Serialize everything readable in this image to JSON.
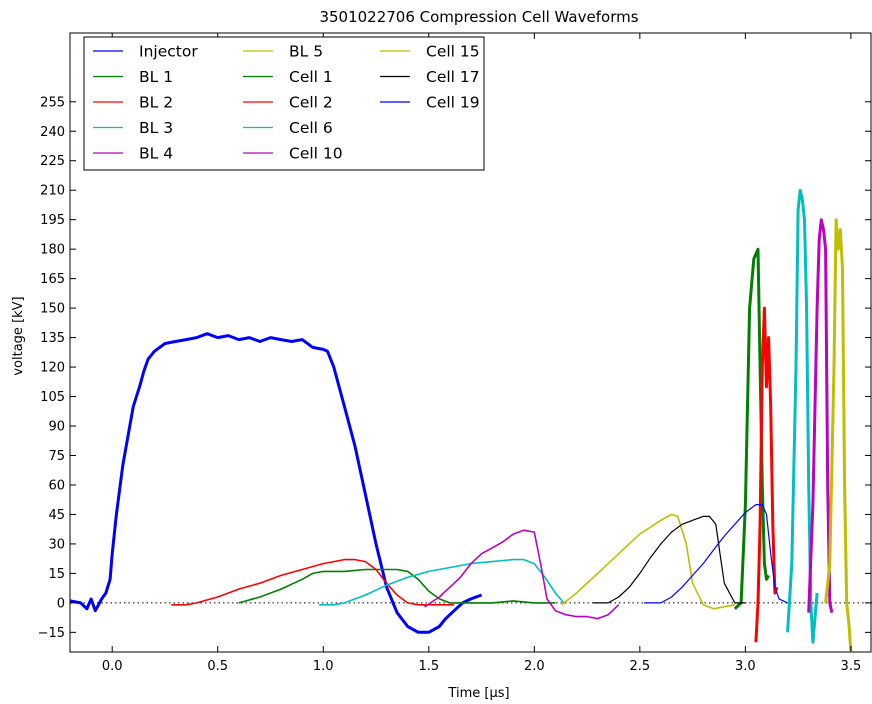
{
  "chart_data": {
    "type": "line",
    "title": "3501022706 Compression Cell Waveforms",
    "xlabel": "Time [μs]",
    "ylabel": "voltage [kV]",
    "xlim": [
      -0.2,
      3.6
    ],
    "ylim": [
      -25,
      290
    ],
    "xticks": [
      0.0,
      0.5,
      1.0,
      1.5,
      2.0,
      2.5,
      3.0,
      3.5
    ],
    "xtick_labels": [
      "0.0",
      "0.5",
      "1.0",
      "1.5",
      "2.0",
      "2.5",
      "3.0",
      "3.5"
    ],
    "yticks": [
      -15,
      0,
      15,
      30,
      45,
      60,
      75,
      90,
      105,
      120,
      135,
      150,
      165,
      180,
      195,
      210,
      225,
      240,
      255
    ],
    "ytick_labels": [
      "−15",
      "0",
      "15",
      "30",
      "45",
      "60",
      "75",
      "90",
      "105",
      "120",
      "135",
      "150",
      "165",
      "180",
      "195",
      "210",
      "225",
      "240",
      "255"
    ],
    "grid": false,
    "zero_line": "dotted",
    "legend_location": "upper-left",
    "legend_columns": 3,
    "series": [
      {
        "name": "Injector",
        "color": "#0000ff",
        "width": 3,
        "x": [
          -0.2,
          -0.15,
          -0.12,
          -0.1,
          -0.08,
          -0.06,
          -0.05,
          -0.03,
          -0.01,
          0.0,
          0.02,
          0.05,
          0.08,
          0.1,
          0.13,
          0.15,
          0.17,
          0.2,
          0.25,
          0.3,
          0.35,
          0.4,
          0.45,
          0.5,
          0.55,
          0.6,
          0.65,
          0.7,
          0.75,
          0.8,
          0.85,
          0.9,
          0.95,
          1.0,
          1.02,
          1.05,
          1.1,
          1.15,
          1.2,
          1.25,
          1.3,
          1.35,
          1.4,
          1.45,
          1.5,
          1.55,
          1.58,
          1.62,
          1.66,
          1.7,
          1.75
        ],
        "y": [
          1,
          0,
          -3,
          2,
          -4,
          0,
          2,
          5,
          12,
          25,
          45,
          70,
          88,
          100,
          110,
          118,
          124,
          128,
          132,
          133,
          134,
          135,
          137,
          135,
          136,
          134,
          135,
          133,
          135,
          134,
          133,
          134,
          130,
          129,
          128,
          120,
          100,
          80,
          55,
          30,
          8,
          -5,
          -12,
          -15,
          -15,
          -12,
          -8,
          -4,
          0,
          2,
          4
        ]
      },
      {
        "name": "BL 1",
        "color": "#008000",
        "width": 1.6,
        "x": [
          0.6,
          0.7,
          0.8,
          0.9,
          0.95,
          1.0,
          1.1,
          1.2,
          1.3,
          1.35,
          1.4,
          1.45,
          1.5,
          1.55,
          1.6,
          1.7,
          1.8,
          1.9,
          2.0,
          2.1
        ],
        "y": [
          0,
          3,
          7,
          12,
          15,
          16,
          16,
          17,
          17,
          17,
          16,
          12,
          6,
          2,
          0,
          0,
          0,
          1,
          0,
          0
        ]
      },
      {
        "name": "BL 2",
        "color": "#ff0000",
        "width": 1.6,
        "x": [
          0.28,
          0.35,
          0.4,
          0.5,
          0.6,
          0.7,
          0.8,
          0.9,
          1.0,
          1.05,
          1.1,
          1.15,
          1.2,
          1.25,
          1.3,
          1.35,
          1.4,
          1.45,
          1.5,
          1.55,
          1.62
        ],
        "y": [
          -1,
          -1,
          0,
          3,
          7,
          10,
          14,
          17,
          20,
          21,
          22,
          22,
          21,
          17,
          10,
          4,
          0,
          -1,
          -1,
          -1,
          -1
        ]
      },
      {
        "name": "BL 3",
        "color": "#00bfbf",
        "width": 1.6,
        "x": [
          0.98,
          1.05,
          1.1,
          1.2,
          1.3,
          1.4,
          1.5,
          1.6,
          1.7,
          1.8,
          1.9,
          1.95,
          2.0,
          2.05,
          2.1,
          2.14
        ],
        "y": [
          -1,
          -1,
          0,
          4,
          9,
          13,
          16,
          18,
          20,
          21,
          22,
          22,
          20,
          13,
          5,
          0
        ]
      },
      {
        "name": "BL 4",
        "color": "#bf00bf",
        "width": 1.6,
        "x": [
          1.48,
          1.55,
          1.6,
          1.65,
          1.7,
          1.75,
          1.8,
          1.85,
          1.9,
          1.95,
          2.0,
          2.03,
          2.06,
          2.1,
          2.15,
          2.2,
          2.25,
          2.3,
          2.35,
          2.4
        ],
        "y": [
          -2,
          3,
          8,
          13,
          20,
          25,
          28,
          31,
          35,
          37,
          36,
          20,
          2,
          -4,
          -6,
          -7,
          -7,
          -8,
          -6,
          -1
        ]
      },
      {
        "name": "BL 5",
        "color": "#bfbf00",
        "width": 1.6,
        "x": [
          2.13,
          2.2,
          2.3,
          2.4,
          2.5,
          2.6,
          2.65,
          2.68,
          2.72,
          2.75,
          2.8,
          2.85,
          2.9,
          2.95
        ],
        "y": [
          -1,
          5,
          15,
          25,
          35,
          42,
          45,
          44,
          30,
          10,
          -1,
          -3,
          -2,
          -1
        ]
      },
      {
        "name": "Cell 1",
        "color": "#008000",
        "width": 3,
        "x": [
          2.95,
          2.98,
          3.0,
          3.02,
          3.04,
          3.06,
          3.07,
          3.08,
          3.09,
          3.1,
          3.11
        ],
        "y": [
          -3,
          0,
          50,
          150,
          175,
          180,
          120,
          60,
          20,
          12,
          14
        ]
      },
      {
        "name": "Cell 2",
        "color": "#ff0000",
        "width": 3,
        "x": [
          3.05,
          3.06,
          3.07,
          3.08,
          3.09,
          3.1,
          3.11,
          3.12,
          3.13,
          3.14,
          3.15
        ],
        "y": [
          -20,
          0,
          40,
          120,
          150,
          110,
          135,
          100,
          40,
          5,
          8
        ]
      },
      {
        "name": "Cell 6",
        "color": "#00bfbf",
        "width": 3,
        "x": [
          3.2,
          3.22,
          3.24,
          3.25,
          3.26,
          3.27,
          3.28,
          3.29,
          3.3,
          3.31,
          3.32,
          3.34
        ],
        "y": [
          -15,
          20,
          120,
          200,
          210,
          205,
          195,
          150,
          60,
          0,
          -20,
          5
        ]
      },
      {
        "name": "Cell 10",
        "color": "#bf00bf",
        "width": 3,
        "x": [
          3.3,
          3.32,
          3.34,
          3.35,
          3.36,
          3.37,
          3.38,
          3.39,
          3.4,
          3.41
        ],
        "y": [
          -5,
          50,
          150,
          185,
          195,
          190,
          180,
          60,
          0,
          -5
        ]
      },
      {
        "name": "Cell 15",
        "color": "#bfbf00",
        "width": 3,
        "x": [
          3.38,
          3.4,
          3.42,
          3.43,
          3.44,
          3.45,
          3.46,
          3.47,
          3.48,
          3.49,
          3.5
        ],
        "y": [
          0,
          20,
          120,
          195,
          180,
          190,
          170,
          60,
          0,
          -10,
          -25
        ]
      },
      {
        "name": "Cell 17",
        "color": "#000000",
        "width": 1.2,
        "x": [
          2.28,
          2.35,
          2.4,
          2.45,
          2.5,
          2.55,
          2.6,
          2.65,
          2.7,
          2.75,
          2.8,
          2.83,
          2.86,
          2.88,
          2.9,
          2.95,
          3.0
        ],
        "y": [
          0,
          0,
          3,
          8,
          15,
          23,
          30,
          36,
          40,
          42,
          44,
          44,
          40,
          25,
          10,
          0,
          0
        ]
      },
      {
        "name": "Cell 19",
        "color": "#0000ff",
        "width": 1.2,
        "x": [
          2.52,
          2.6,
          2.65,
          2.7,
          2.75,
          2.8,
          2.85,
          2.9,
          2.95,
          3.0,
          3.05,
          3.08,
          3.1,
          3.12,
          3.14,
          3.16,
          3.2
        ],
        "y": [
          0,
          0,
          3,
          8,
          14,
          20,
          27,
          34,
          40,
          46,
          50,
          50,
          45,
          25,
          8,
          2,
          0
        ]
      }
    ]
  }
}
